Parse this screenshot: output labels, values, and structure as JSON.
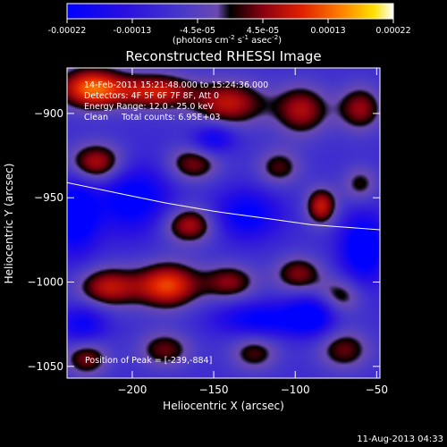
{
  "chart_data": {
    "type": "heatmap",
    "title": "Reconstructed RHESSI Image",
    "colorbar": {
      "min": -0.00022,
      "max": 0.00022,
      "tick_labels": [
        "-0.00022",
        "-0.00013",
        "-4.5e-05",
        "4.5e-05",
        "0.00013",
        "0.00022"
      ],
      "unit_label_parts": [
        "(photons cm",
        "-2",
        " s",
        "-1",
        " asec",
        "-2",
        ")"
      ]
    },
    "xlabel": "Heliocentric X (arcsec)",
    "ylabel": "Heliocentric Y (arcsec)",
    "xlim": [
      -240,
      -48
    ],
    "ylim": [
      -1057,
      -873
    ],
    "x_ticks": [
      -200,
      -150,
      -100,
      -50
    ],
    "y_ticks": [
      -900,
      -950,
      -1000,
      -1050
    ],
    "x_tick_labels": [
      "−200",
      "−150",
      "−100",
      "−50"
    ],
    "y_tick_labels": [
      "−900",
      "−950",
      "−1000",
      "−1050"
    ],
    "info_lines": [
      "14-Feb-2011 15:21:48.000 to 15:24:36.000",
      "Detectors: 4F 5F 6F 7F 8F, Att 0",
      "Energy Range: 12.0 - 25.0 keV",
      "Clean     Total counts: 6.95E+03"
    ],
    "peak_label": "Position of Peak = [-239,-884]",
    "peak_position": [
      -239,
      -884
    ],
    "limb_curve": [
      [
        -240,
        -941
      ],
      [
        -210,
        -947
      ],
      [
        -180,
        -953
      ],
      [
        -150,
        -958
      ],
      [
        -120,
        -962
      ],
      [
        -90,
        -966
      ],
      [
        -48,
        -969
      ]
    ],
    "sources": [
      {
        "x": -225,
        "y": -885,
        "amp": 0.00022,
        "sx": 15,
        "sy": 9
      },
      {
        "x": -185,
        "y": -887,
        "amp": 0.00017,
        "sx": 17,
        "sy": 8
      },
      {
        "x": -140,
        "y": -894,
        "amp": 0.00016,
        "sx": 16,
        "sy": 10
      },
      {
        "x": -96,
        "y": -898,
        "amp": 0.00015,
        "sx": 12,
        "sy": 11
      },
      {
        "x": -60,
        "y": -897,
        "amp": 0.00014,
        "sx": 10,
        "sy": 10
      },
      {
        "x": -222,
        "y": -930,
        "amp": 0.00018,
        "sx": 13,
        "sy": 9
      },
      {
        "x": -163,
        "y": -930,
        "amp": 0.00013,
        "sx": 12,
        "sy": 8
      },
      {
        "x": -110,
        "y": -932,
        "amp": 0.00011,
        "sx": 10,
        "sy": 8
      },
      {
        "x": -84,
        "y": -955,
        "amp": 0.00017,
        "sx": 7,
        "sy": 8
      },
      {
        "x": -165,
        "y": -966,
        "amp": 0.00016,
        "sx": 12,
        "sy": 8
      },
      {
        "x": -60,
        "y": -942,
        "amp": 0.0001,
        "sx": 8,
        "sy": 8
      },
      {
        "x": -215,
        "y": -1003,
        "amp": 0.00016,
        "sx": 14,
        "sy": 9
      },
      {
        "x": -178,
        "y": -1002,
        "amp": 0.0002,
        "sx": 14,
        "sy": 10
      },
      {
        "x": -140,
        "y": -1000,
        "amp": 0.00013,
        "sx": 12,
        "sy": 8
      },
      {
        "x": -98,
        "y": -995,
        "amp": 0.00013,
        "sx": 11,
        "sy": 8
      },
      {
        "x": -72,
        "y": -1008,
        "amp": 0.00011,
        "sx": 10,
        "sy": 8
      },
      {
        "x": -228,
        "y": -1045,
        "amp": 0.00013,
        "sx": 10,
        "sy": 8
      },
      {
        "x": -180,
        "y": -1040,
        "amp": 0.00012,
        "sx": 12,
        "sy": 8
      },
      {
        "x": -125,
        "y": -1042,
        "amp": 0.00011,
        "sx": 11,
        "sy": 8
      },
      {
        "x": -70,
        "y": -1040,
        "amp": 0.00012,
        "sx": 12,
        "sy": 9
      },
      {
        "x": -200,
        "y": -950,
        "amp": -0.00016,
        "sx": 16,
        "sy": 14
      },
      {
        "x": -235,
        "y": -960,
        "amp": -0.00018,
        "sx": 10,
        "sy": 16
      },
      {
        "x": -130,
        "y": -960,
        "amp": -0.00014,
        "sx": 14,
        "sy": 10
      },
      {
        "x": -58,
        "y": -980,
        "amp": -0.00018,
        "sx": 10,
        "sy": 14
      },
      {
        "x": -120,
        "y": -1022,
        "amp": -0.00014,
        "sx": 20,
        "sy": 7
      },
      {
        "x": -230,
        "y": -1025,
        "amp": -0.00012,
        "sx": 10,
        "sy": 8
      },
      {
        "x": -90,
        "y": -1020,
        "amp": -0.00015,
        "sx": 10,
        "sy": 8
      },
      {
        "x": -150,
        "y": -915,
        "amp": -0.00012,
        "sx": 9,
        "sy": 6
      }
    ]
  },
  "footer": {
    "date_stamp": "11-Aug-2013 04:33"
  }
}
